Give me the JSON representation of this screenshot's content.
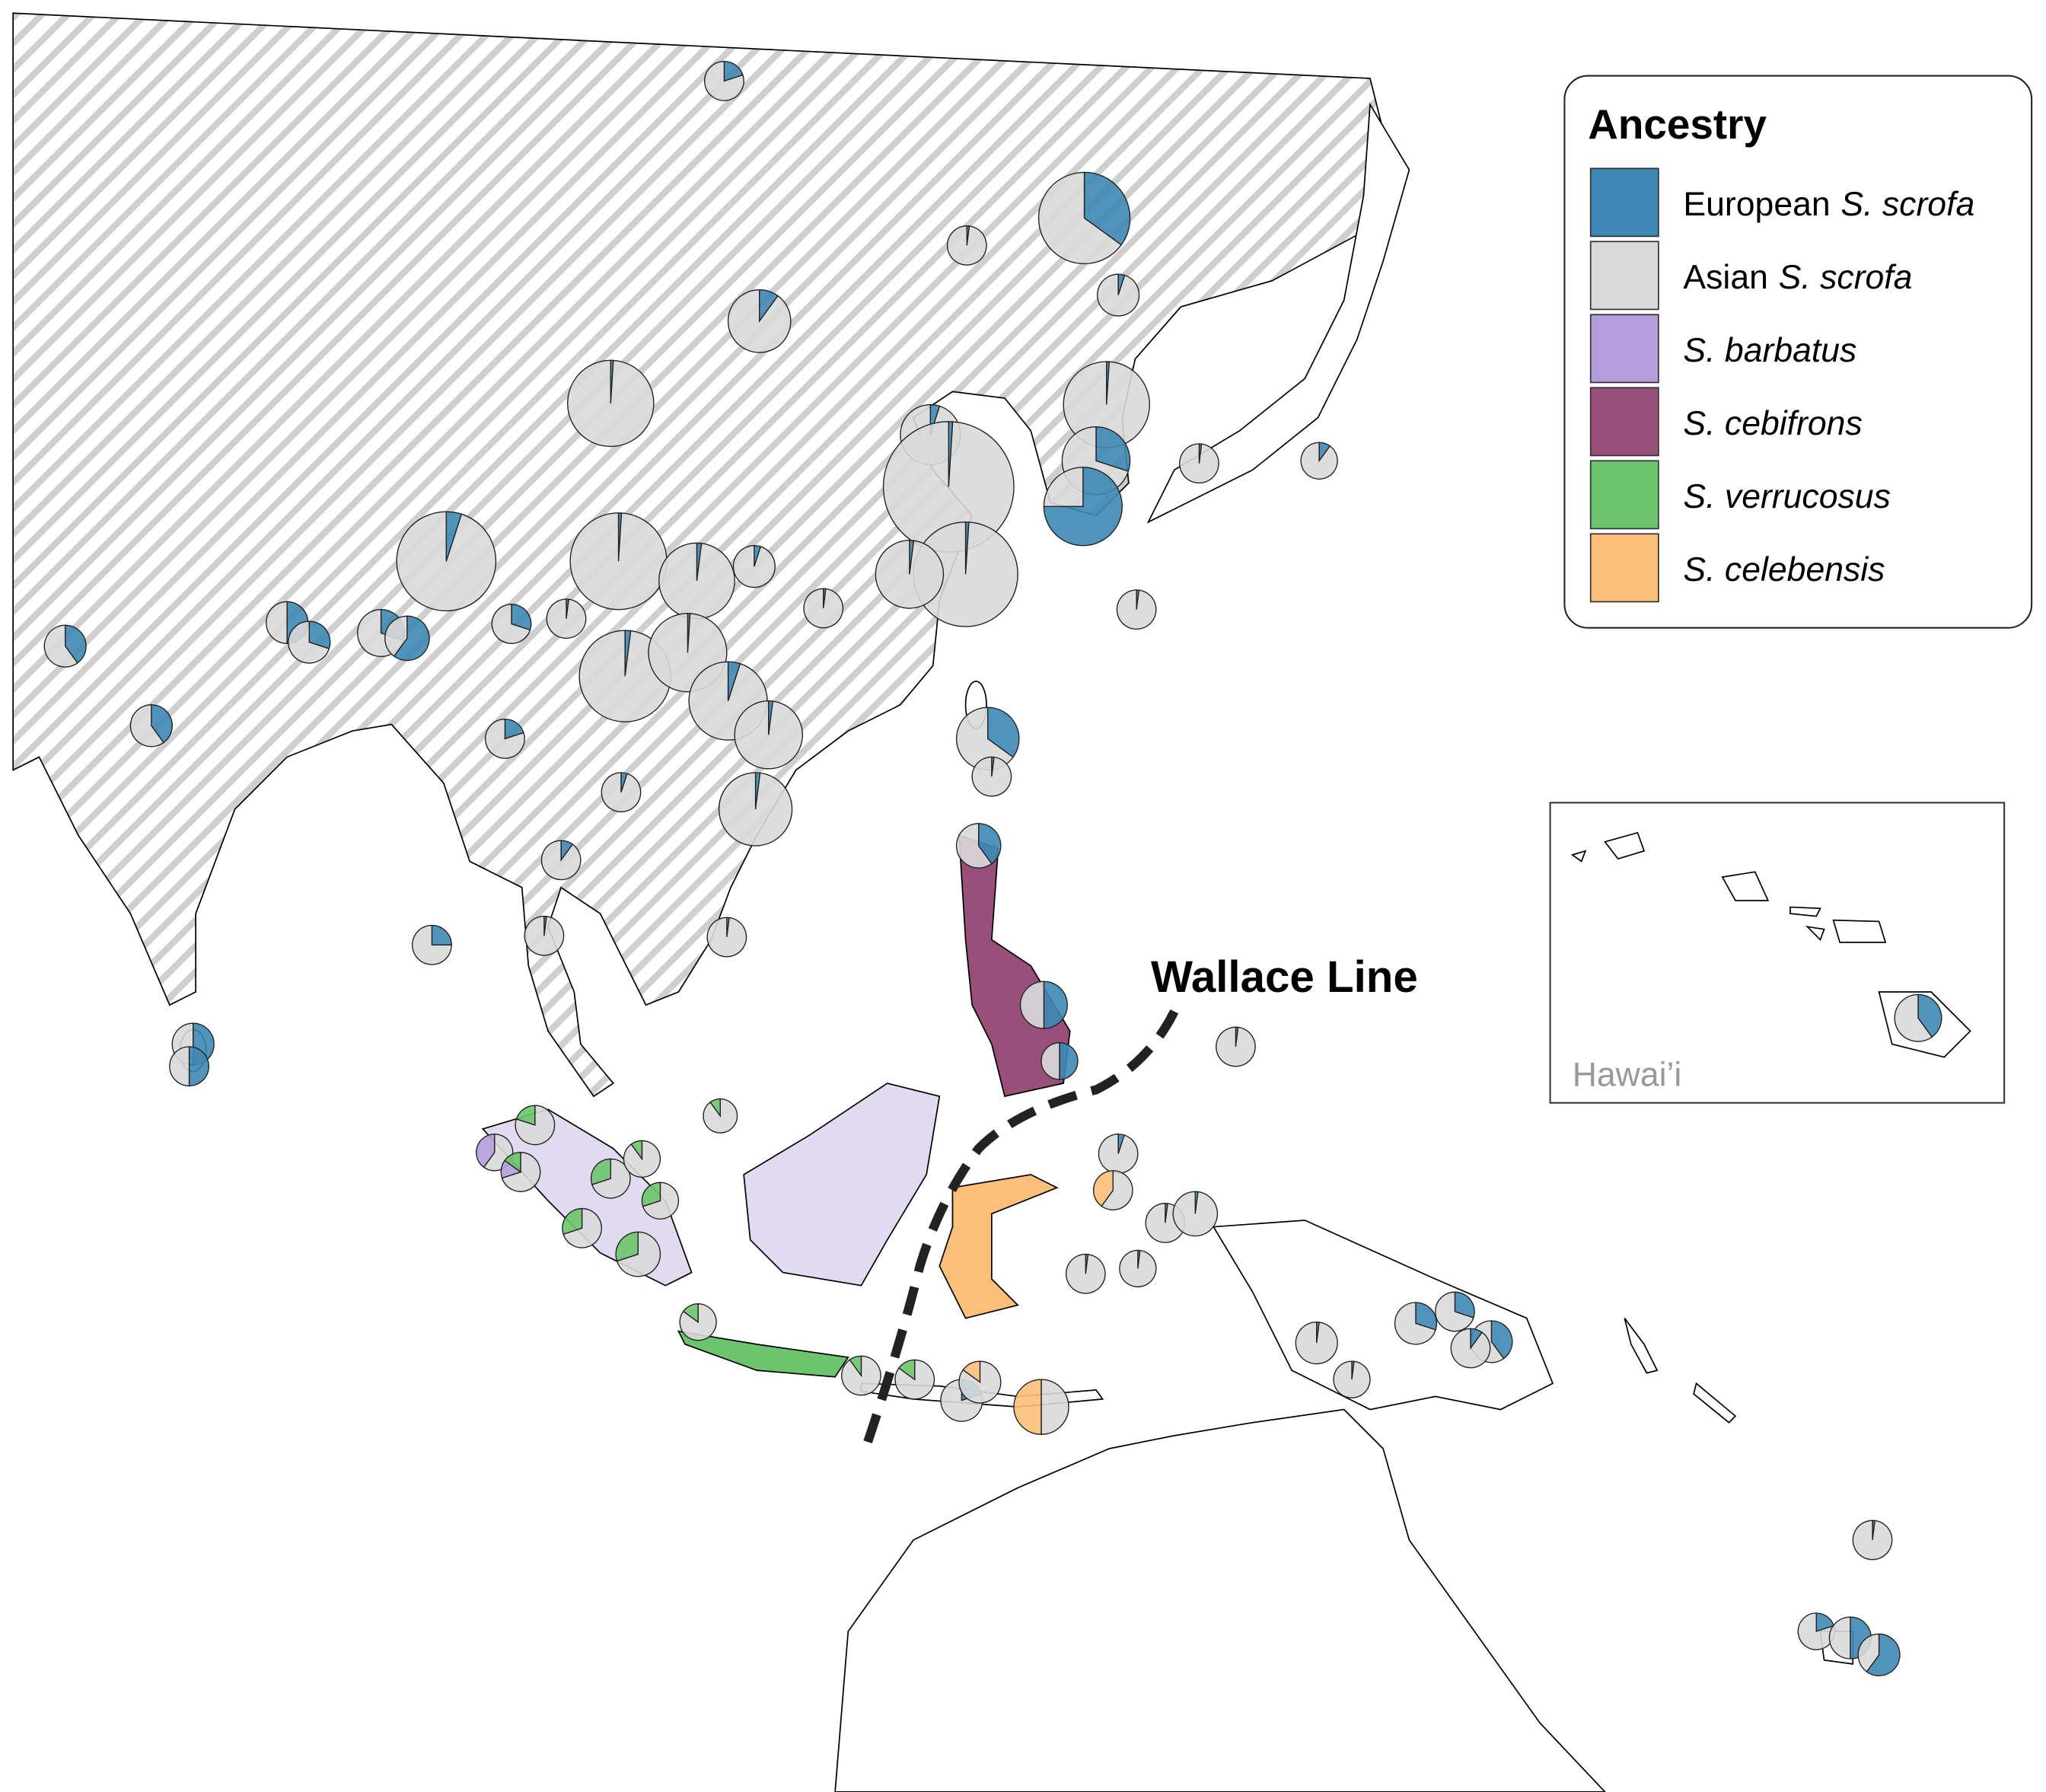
{
  "legend": {
    "title": "Ancestry",
    "items": [
      {
        "label": "European",
        "species": "S. scrofa",
        "color": "#3d88b4"
      },
      {
        "label": "Asian",
        "species": "S. scrofa",
        "color": "#d9d9d9"
      },
      {
        "species": "S. barbatus",
        "color": "#b39ddb"
      },
      {
        "species": "S. cebifrons",
        "color": "#98507a"
      },
      {
        "species": "S. verrucosus",
        "color": "#6cc46c"
      },
      {
        "species": "S. celebensis",
        "color": "#fbbf7a"
      }
    ]
  },
  "annotation": "Wallace Line",
  "inset_label": "Hawai’i",
  "pies": [
    {
      "values": [
        0.2,
        0.8,
        0,
        0,
        0,
        0
      ]
    },
    {
      "values": [
        0.35,
        0.65,
        0,
        0,
        0,
        0
      ]
    },
    {
      "values": [
        0.02,
        0.98,
        0,
        0,
        0,
        0
      ]
    },
    {
      "values": [
        0.05,
        0.95,
        0,
        0,
        0,
        0
      ]
    },
    {
      "values": [
        0.1,
        0.9,
        0,
        0,
        0,
        0
      ]
    },
    {
      "values": [
        0.01,
        0.99,
        0,
        0,
        0,
        0
      ]
    },
    {
      "values": [
        0.01,
        0.99,
        0,
        0,
        0,
        0
      ]
    },
    {
      "values": [
        0.05,
        0.95,
        0,
        0,
        0,
        0
      ]
    },
    {
      "values": [
        0.01,
        0.99,
        0,
        0,
        0,
        0
      ]
    },
    {
      "values": [
        0.3,
        0.7,
        0,
        0,
        0,
        0
      ]
    },
    {
      "values": [
        0.75,
        0.25,
        0,
        0,
        0,
        0
      ]
    },
    {
      "values": [
        0.02,
        0.98,
        0,
        0,
        0,
        0
      ]
    },
    {
      "values": [
        0.1,
        0.9,
        0,
        0,
        0,
        0
      ]
    },
    {
      "values": [
        0.05,
        0.95,
        0,
        0,
        0,
        0
      ]
    },
    {
      "values": [
        0.01,
        0.99,
        0,
        0,
        0,
        0
      ]
    },
    {
      "values": [
        0.02,
        0.98,
        0,
        0,
        0,
        0
      ]
    },
    {
      "values": [
        0.05,
        0.95,
        0,
        0,
        0,
        0
      ]
    },
    {
      "values": [
        0.01,
        0.99,
        0,
        0,
        0,
        0
      ]
    },
    {
      "values": [
        0.02,
        0.98,
        0,
        0,
        0,
        0
      ]
    },
    {
      "values": [
        0.02,
        0.98,
        0,
        0,
        0,
        0
      ]
    },
    {
      "values": [
        0.02,
        0.98,
        0,
        0,
        0,
        0
      ]
    },
    {
      "values": [
        0.4,
        0.6,
        0,
        0,
        0,
        0
      ]
    },
    {
      "values": [
        0.5,
        0.5,
        0,
        0,
        0,
        0
      ]
    },
    {
      "values": [
        0.3,
        0.7,
        0,
        0,
        0,
        0
      ]
    },
    {
      "values": [
        0.3,
        0.7,
        0,
        0,
        0,
        0
      ]
    },
    {
      "values": [
        0.6,
        0.4,
        0,
        0,
        0,
        0
      ]
    },
    {
      "values": [
        0.3,
        0.7,
        0,
        0,
        0,
        0
      ]
    },
    {
      "values": [
        0.02,
        0.98,
        0,
        0,
        0,
        0
      ]
    },
    {
      "values": [
        0.02,
        0.98,
        0,
        0,
        0,
        0
      ]
    },
    {
      "values": [
        0.01,
        0.99,
        0,
        0,
        0,
        0
      ]
    },
    {
      "values": [
        0.05,
        0.95,
        0,
        0,
        0,
        0
      ]
    },
    {
      "values": [
        0.02,
        0.98,
        0,
        0,
        0,
        0
      ]
    },
    {
      "values": [
        0.4,
        0.6,
        0,
        0,
        0,
        0
      ]
    },
    {
      "values": [
        0.2,
        0.8,
        0,
        0,
        0,
        0
      ]
    },
    {
      "values": [
        0.35,
        0.65,
        0,
        0,
        0,
        0
      ]
    },
    {
      "values": [
        0.05,
        0.95,
        0,
        0,
        0,
        0
      ]
    },
    {
      "values": [
        0.02,
        0.98,
        0,
        0,
        0,
        0
      ]
    },
    {
      "values": [
        0.02,
        0.98,
        0,
        0,
        0,
        0
      ]
    },
    {
      "values": [
        0.1,
        0.9,
        0,
        0,
        0,
        0
      ]
    },
    {
      "values": [
        0.4,
        0.6,
        0,
        0,
        0,
        0
      ]
    },
    {
      "values": [
        0.25,
        0.75,
        0,
        0,
        0,
        0
      ]
    },
    {
      "values": [
        0.02,
        0.98,
        0,
        0,
        0,
        0
      ]
    },
    {
      "values": [
        0.02,
        0.98,
        0,
        0,
        0,
        0
      ]
    },
    {
      "values": [
        0.5,
        0.5,
        0,
        0,
        0,
        0
      ]
    },
    {
      "values": [
        0.5,
        0.5,
        0,
        0,
        0,
        0
      ]
    },
    {
      "values": [
        0.5,
        0.5,
        0,
        0,
        0,
        0
      ]
    },
    {
      "values": [
        0.5,
        0.5,
        0,
        0,
        0,
        0
      ]
    },
    {
      "values": [
        0.02,
        0.98,
        0,
        0,
        0,
        0
      ]
    },
    {
      "values": [
        0,
        0.9,
        0,
        0,
        0.1,
        0
      ]
    },
    {
      "values": [
        0,
        0.6,
        0.4,
        0,
        0,
        0
      ]
    },
    {
      "values": [
        0,
        0.7,
        0.15,
        0,
        0.15,
        0
      ]
    },
    {
      "values": [
        0,
        0.8,
        0,
        0,
        0.2,
        0
      ]
    },
    {
      "values": [
        0,
        0.7,
        0,
        0,
        0.3,
        0
      ]
    },
    {
      "values": [
        0,
        0.9,
        0,
        0,
        0.1,
        0
      ]
    },
    {
      "values": [
        0,
        0.7,
        0,
        0,
        0.3,
        0
      ]
    },
    {
      "values": [
        0,
        0.7,
        0,
        0,
        0.3,
        0
      ]
    },
    {
      "values": [
        0,
        0.7,
        0,
        0,
        0.3,
        0
      ]
    },
    {
      "values": [
        0,
        0.85,
        0,
        0,
        0.15,
        0
      ]
    },
    {
      "values": [
        0,
        0.9,
        0,
        0,
        0.1,
        0
      ]
    },
    {
      "values": [
        0,
        0.85,
        0,
        0,
        0.15,
        0
      ]
    },
    {
      "values": [
        0.2,
        0.8,
        0,
        0,
        0,
        0
      ]
    },
    {
      "values": [
        0,
        0.85,
        0,
        0,
        0,
        0.15
      ]
    },
    {
      "values": [
        0,
        0.5,
        0,
        0,
        0,
        0.5
      ]
    },
    {
      "values": [
        0.05,
        0.95,
        0,
        0,
        0,
        0
      ]
    },
    {
      "values": [
        0,
        0.6,
        0,
        0,
        0,
        0.4
      ]
    },
    {
      "values": [
        0.02,
        0.98,
        0,
        0,
        0,
        0
      ]
    },
    {
      "values": [
        0.02,
        0.98,
        0,
        0,
        0,
        0
      ]
    },
    {
      "values": [
        0.02,
        0.98,
        0,
        0,
        0,
        0
      ]
    },
    {
      "values": [
        0.02,
        0.98,
        0,
        0,
        0,
        0
      ]
    },
    {
      "values": [
        0.02,
        0.98,
        0,
        0,
        0,
        0
      ]
    },
    {
      "values": [
        0.02,
        0.98,
        0,
        0,
        0,
        0
      ]
    },
    {
      "values": [
        0.3,
        0.7,
        0,
        0,
        0,
        0
      ]
    },
    {
      "values": [
        0.3,
        0.7,
        0,
        0,
        0,
        0
      ]
    },
    {
      "values": [
        0.4,
        0.6,
        0,
        0,
        0,
        0
      ]
    },
    {
      "values": [
        0.1,
        0.9,
        0,
        0,
        0,
        0
      ]
    },
    {
      "values": [
        0.02,
        0.98,
        0,
        0,
        0,
        0
      ]
    },
    {
      "values": [
        0.2,
        0.8,
        0,
        0,
        0,
        0
      ]
    },
    {
      "values": [
        0.5,
        0.5,
        0,
        0,
        0,
        0
      ]
    },
    {
      "values": [
        0.6,
        0.4,
        0,
        0,
        0,
        0
      ]
    },
    {
      "values": [
        0.4,
        0.6,
        0,
        0,
        0,
        0
      ]
    }
  ]
}
